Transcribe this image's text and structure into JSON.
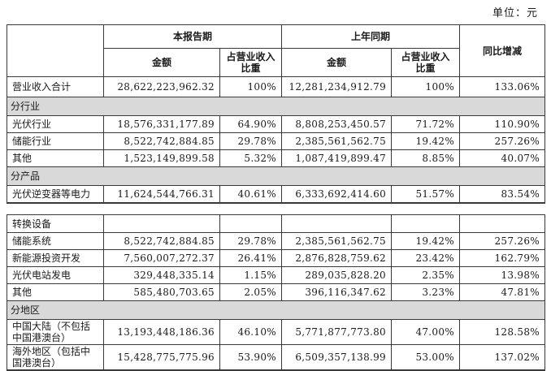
{
  "unit_label": "单位：元",
  "colors": {
    "section_row_bg": "#d9d9d9",
    "border": "#3a3a3a",
    "text": "#1a1a1a"
  },
  "table": {
    "header": {
      "period_current": "本报告期",
      "period_prior": "上年同期",
      "yoy_change": "同比增减",
      "amount": "金额",
      "revenue_share": "占营业收入比重"
    },
    "part1_rows": [
      {
        "type": "data",
        "label": "营业收入合计",
        "cells": [
          "28,622,223,962.32",
          "100%",
          "12,281,234,912.79",
          "100%",
          "133.06%"
        ]
      },
      {
        "type": "section",
        "id": "by-industry",
        "label": "分行业"
      },
      {
        "type": "data",
        "label": "光伏行业",
        "cells": [
          "18,576,331,177.89",
          "64.90%",
          "8,808,253,450.57",
          "71.72%",
          "110.90%"
        ]
      },
      {
        "type": "data",
        "label": "储能行业",
        "cells": [
          "8,522,742,884.85",
          "29.78%",
          "2,385,561,562.75",
          "19.42%",
          "257.26%"
        ]
      },
      {
        "type": "data",
        "label": "其他",
        "cells": [
          "1,523,149,899.58",
          "5.32%",
          "1,087,419,899.47",
          "8.85%",
          "40.07%"
        ]
      },
      {
        "type": "section",
        "id": "by-product",
        "label": "分产品"
      },
      {
        "type": "data",
        "label": "光伏逆变器等电力",
        "cells": [
          "11,624,544,766.31",
          "40.61%",
          "6,333,692,414.60",
          "51.57%",
          "83.54%"
        ]
      }
    ],
    "part2_rows": [
      {
        "type": "data",
        "label": "转换设备",
        "cells": [
          "",
          "",
          "",
          "",
          ""
        ]
      },
      {
        "type": "data",
        "label": "储能系统",
        "cells": [
          "8,522,742,884.85",
          "29.78%",
          "2,385,561,562.75",
          "19.42%",
          "257.26%"
        ]
      },
      {
        "type": "data",
        "label": "新能源投资开发",
        "cells": [
          "7,560,007,272.37",
          "26.41%",
          "2,876,828,759.62",
          "23.42%",
          "162.79%"
        ]
      },
      {
        "type": "data",
        "label": "光伏电站发电",
        "cells": [
          "329,448,335.14",
          "1.15%",
          "289,035,828.20",
          "2.35%",
          "13.98%"
        ]
      },
      {
        "type": "data",
        "label": "其他",
        "cells": [
          "585,480,703.65",
          "2.05%",
          "396,116,347.62",
          "3.23%",
          "47.81%"
        ]
      },
      {
        "type": "section",
        "id": "by-region",
        "label": "分地区"
      },
      {
        "type": "data",
        "label": "中国大陆（不包括中国港澳台）",
        "cells": [
          "13,193,448,186.36",
          "46.10%",
          "5,771,877,773.80",
          "47.00%",
          "128.58%"
        ]
      },
      {
        "type": "data",
        "label": "海外地区（包括中国港澳台）",
        "cells": [
          "15,428,775,775.96",
          "53.90%",
          "6,509,357,138.99",
          "53.00%",
          "137.02%"
        ]
      }
    ]
  }
}
